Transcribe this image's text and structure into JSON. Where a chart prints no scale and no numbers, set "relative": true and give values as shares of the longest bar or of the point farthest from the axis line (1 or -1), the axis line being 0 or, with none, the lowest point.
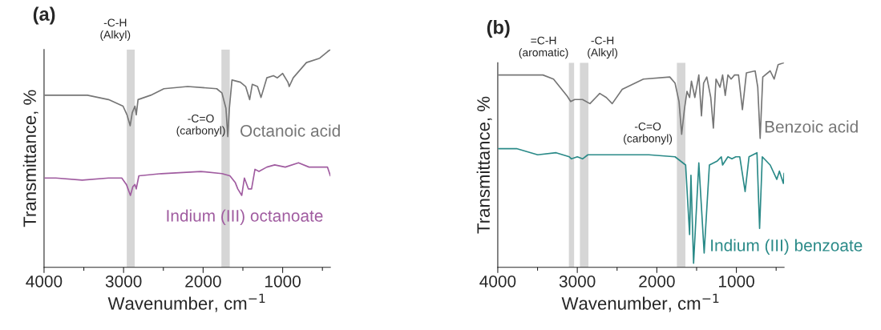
{
  "chart_data": [
    {
      "type": "line",
      "title": "(a)",
      "xlabel": "Wavenumber, cm$^{−1}$",
      "ylabel": "Transmittance, %",
      "relative": true,
      "xlim": [
        4000,
        400
      ],
      "xticks": [
        4000,
        {
          "value": 3500,
          "label": null
        },
        3000,
        {
          "value": 2500,
          "label": null
        },
        2000,
        {
          "value": 1500,
          "label": null
        },
        1000,
        {
          "value": 500,
          "label": null
        }
      ],
      "grid": false,
      "legend": false,
      "marker": "none",
      "line_style": "solid",
      "bands": [
        {
          "axis": "x",
          "from": 2960,
          "to": 2860,
          "label": "-C-H\n(Alkyl)",
          "color": "#d6d6d6"
        },
        {
          "axis": "x",
          "from": 1770,
          "to": 1665,
          "label": "-C=O\n(carbonyl)",
          "color": "#d6d6d6"
        }
      ],
      "series": [
        {
          "name": "Octanoic acid",
          "color": "#767676",
          "x": [
            3990,
            3852,
            3454,
            3189,
            3007,
            2957,
            2917,
            2891,
            2857,
            2841,
            2818,
            2659,
            2493,
            2194,
            1829,
            1763,
            1713,
            1690,
            1670,
            1637,
            1531,
            1465,
            1415,
            1382,
            1316,
            1272,
            1199,
            1116,
            1066,
            1000,
            934,
            917,
            867,
            701,
            535,
            436,
            400
          ],
          "values": [
            0.79,
            0.79,
            0.79,
            0.77,
            0.74,
            0.7,
            0.65,
            0.71,
            0.74,
            0.7,
            0.77,
            0.79,
            0.82,
            0.83,
            0.82,
            0.8,
            0.73,
            0.6,
            0.73,
            0.86,
            0.85,
            0.83,
            0.77,
            0.84,
            0.83,
            0.78,
            0.87,
            0.88,
            0.87,
            0.89,
            0.85,
            0.83,
            0.87,
            0.94,
            0.96,
            0.99,
            1.0
          ]
        },
        {
          "name": "Indium (III) octanoate",
          "color": "#a05ca0",
          "x": [
            3990,
            3852,
            3520,
            3189,
            3023,
            2964,
            2914,
            2884,
            2857,
            2841,
            2808,
            2526,
            2029,
            1763,
            1663,
            1597,
            1564,
            1514,
            1481,
            1431,
            1391,
            1348,
            1298,
            1199,
            1100,
            967,
            801,
            668,
            436,
            400
          ],
          "values": [
            0.41,
            0.41,
            0.4,
            0.41,
            0.41,
            0.38,
            0.33,
            0.37,
            0.38,
            0.36,
            0.42,
            0.43,
            0.44,
            0.43,
            0.42,
            0.39,
            0.36,
            0.33,
            0.41,
            0.36,
            0.36,
            0.45,
            0.44,
            0.46,
            0.47,
            0.46,
            0.48,
            0.46,
            0.46,
            0.42
          ]
        }
      ]
    },
    {
      "type": "line",
      "title": "(b)",
      "xlabel": "Wavenumber, cm$^{−1}$",
      "ylabel": "Transmittance, %",
      "relative": true,
      "xlim": [
        4000,
        400
      ],
      "xticks": [
        4000,
        {
          "value": 3500,
          "label": null
        },
        3000,
        {
          "value": 2500,
          "label": null
        },
        2000,
        {
          "value": 1500,
          "label": null
        },
        1000,
        {
          "value": 500,
          "label": null
        }
      ],
      "grid": false,
      "legend": false,
      "marker": "none",
      "line_style": "solid",
      "bands": [
        {
          "axis": "x",
          "from": 3106,
          "to": 3040,
          "label": "=C-H\n(aromatic)",
          "color": "#d6d6d6"
        },
        {
          "axis": "x",
          "from": 2967,
          "to": 2860,
          "label": "-C-H\n(Alkyl)",
          "color": "#d6d6d6"
        },
        {
          "axis": "x",
          "from": 1748,
          "to": 1641,
          "label": "-C=O\n(carbonyl)",
          "color": "#d6d6d6"
        }
      ],
      "series": [
        {
          "name": "Benzoic acid",
          "color": "#767676",
          "x": [
            3990,
            3432,
            3299,
            3133,
            3083,
            3033,
            2934,
            2841,
            2767,
            2718,
            2635,
            2561,
            2435,
            2169,
            1837,
            1771,
            1721,
            1688,
            1654,
            1621,
            1588,
            1565,
            1522,
            1472,
            1439,
            1412,
            1372,
            1322,
            1289,
            1256,
            1206,
            1173,
            1140,
            1106,
            1066,
            1023,
            973,
            924,
            874,
            764,
            731,
            701,
            668,
            575,
            525,
            475,
            400
          ],
          "values": [
            0.94,
            0.94,
            0.92,
            0.84,
            0.81,
            0.82,
            0.82,
            0.8,
            0.83,
            0.85,
            0.83,
            0.8,
            0.87,
            0.92,
            0.93,
            0.9,
            0.81,
            0.65,
            0.77,
            0.86,
            0.83,
            0.91,
            0.83,
            0.94,
            0.74,
            0.9,
            0.93,
            0.83,
            0.68,
            0.92,
            0.88,
            0.94,
            0.84,
            0.94,
            0.92,
            0.94,
            0.94,
            0.77,
            0.95,
            0.96,
            0.88,
            0.63,
            0.93,
            0.96,
            0.92,
            0.99,
            1.0
          ]
        },
        {
          "name": "Indium (III) benzoate",
          "color": "#2a8a88",
          "x": [
            3990,
            3764,
            3498,
            3266,
            3100,
            3073,
            3000,
            2934,
            2867,
            2601,
            2100,
            1771,
            1638,
            1588,
            1571,
            1538,
            1472,
            1405,
            1339,
            1239,
            1189,
            1173,
            1106,
            1056,
            1007,
            957,
            890,
            841,
            741,
            708,
            674,
            575,
            492,
            459,
            409,
            400
          ],
          "values": [
            0.58,
            0.58,
            0.55,
            0.56,
            0.54,
            0.53,
            0.54,
            0.53,
            0.55,
            0.55,
            0.55,
            0.54,
            0.5,
            0.16,
            0.45,
            0.02,
            0.51,
            0.07,
            0.5,
            0.52,
            0.54,
            0.5,
            0.54,
            0.53,
            0.54,
            0.54,
            0.37,
            0.54,
            0.56,
            0.19,
            0.54,
            0.5,
            0.43,
            0.47,
            0.41,
            0.46
          ]
        }
      ]
    }
  ]
}
